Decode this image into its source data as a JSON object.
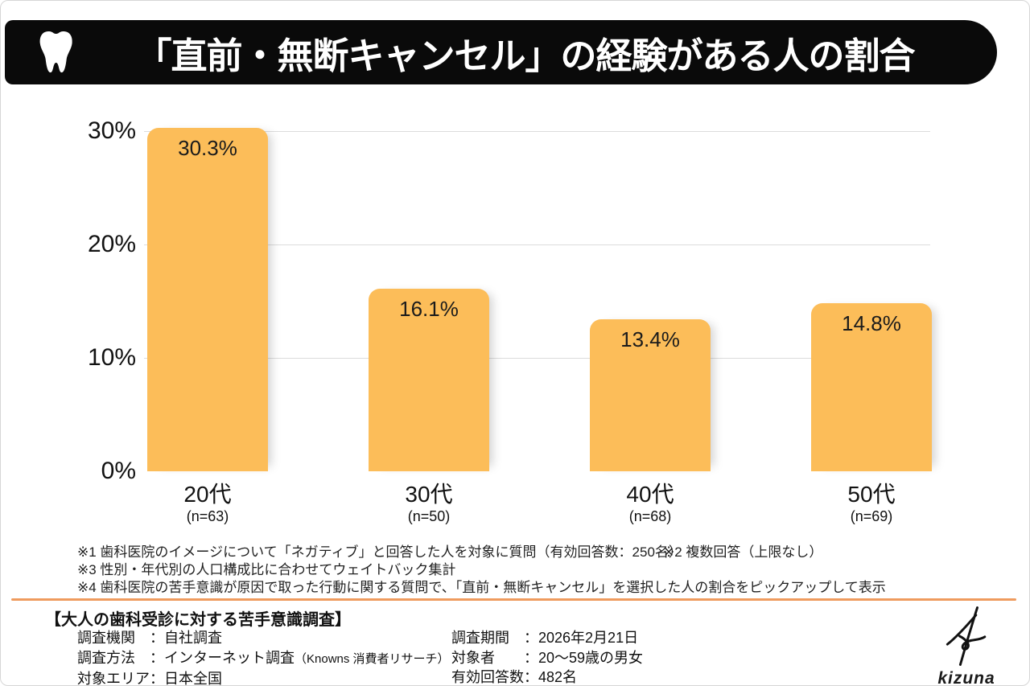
{
  "header": {
    "title": "「直前・無断キャンセル」の経験がある人の割合"
  },
  "colors": {
    "bar": "#FCBD59",
    "banner": "#0A0A0A",
    "divider": "#EF9B5E",
    "gridline": "#DCDCDC"
  },
  "chart_data": {
    "type": "bar",
    "title": "「直前・無断キャンセル」の経験がある人の割合",
    "categories": [
      "20代",
      "30代",
      "40代",
      "50代"
    ],
    "sample_labels": [
      "(n=63)",
      "(n=50)",
      "(n=68)",
      "(n=69)"
    ],
    "values": [
      30.3,
      16.1,
      13.4,
      14.8
    ],
    "value_labels": [
      "30.3%",
      "16.1%",
      "13.4%",
      "14.8%"
    ],
    "y_tick_values": [
      30,
      20,
      10,
      0
    ],
    "y_tick_labels": [
      "30%",
      "20%",
      "10%",
      "0%"
    ],
    "ylim": [
      0,
      30
    ],
    "grid": true,
    "legend": "none",
    "bar_color": "#FCBD59"
  },
  "footnotes": {
    "note1": "※1 歯科医院のイメージについて「ネガティブ」と回答した人を対象に質問（有効回答数：250名）",
    "note2": "※2 複数回答（上限なし）",
    "note3": "※3 性別・年代別の人口構成比に合わせてウェイトバック集計",
    "note4": "※4 歯科医院の苦手意識が原因で取った行動に関する質問で、「直前・無断キャンセル」を選択した人の割合をピックアップして表示"
  },
  "survey": {
    "title": "【大人の歯科受診に対する苦手意識調査】",
    "colon": "：",
    "left_rows": [
      {
        "label": "調査機関",
        "value": "自社調査",
        "value_small": ""
      },
      {
        "label": "調査方法",
        "value": "インターネット調査",
        "value_small": "（Knowns 消費者リサーチ）"
      },
      {
        "label": "対象エリア",
        "value": "日本全国",
        "value_small": ""
      }
    ],
    "right_rows": [
      {
        "label": "調査期間",
        "value": "2026年2月21日",
        "value_small": ""
      },
      {
        "label": "対象者",
        "value": "20〜59歳の男女",
        "value_small": ""
      },
      {
        "label": "有効回答数",
        "value": "482名",
        "value_small": ""
      }
    ]
  },
  "logo": {
    "text": "kizuna"
  }
}
